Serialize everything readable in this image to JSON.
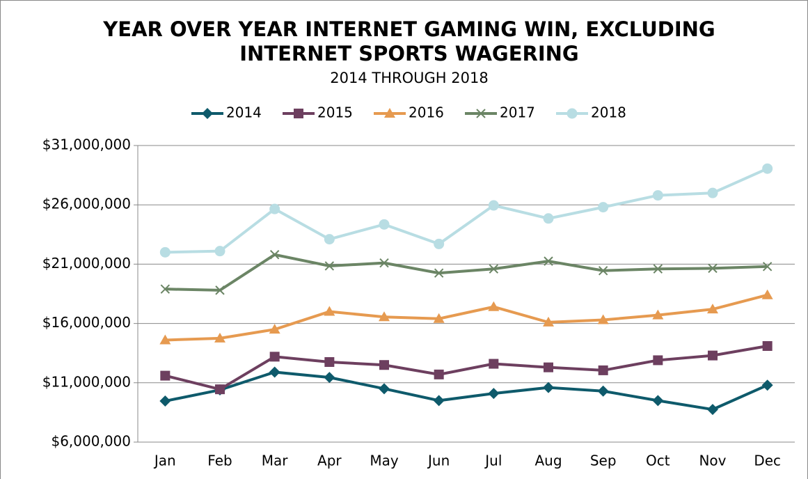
{
  "chart_data": {
    "type": "line",
    "title": [
      "YEAR OVER YEAR INTERNET GAMING WIN, EXCLUDING",
      "INTERNET SPORTS WAGERING"
    ],
    "subtitle": "2014 THROUGH 2018",
    "categories": [
      "Jan",
      "Feb",
      "Mar",
      "Apr",
      "May",
      "Jun",
      "Jul",
      "Aug",
      "Sep",
      "Oct",
      "Nov",
      "Dec"
    ],
    "series": [
      {
        "name": "2014",
        "color": "#0e5a6b",
        "marker": "diamond",
        "values": [
          9460000,
          10400000,
          11900000,
          11450000,
          10500000,
          9500000,
          10100000,
          10600000,
          10300000,
          9500000,
          8750000,
          10800000
        ]
      },
      {
        "name": "2015",
        "color": "#6d3f5f",
        "marker": "square",
        "values": [
          11600000,
          10450000,
          13200000,
          12750000,
          12500000,
          11700000,
          12600000,
          12300000,
          12050000,
          12900000,
          13300000,
          14100000
        ]
      },
      {
        "name": "2016",
        "color": "#e69a50",
        "marker": "triangle",
        "values": [
          14600000,
          14750000,
          15500000,
          17000000,
          16550000,
          16400000,
          17400000,
          16100000,
          16300000,
          16700000,
          17200000,
          18400000
        ]
      },
      {
        "name": "2017",
        "color": "#6b8565",
        "marker": "x",
        "values": [
          18900000,
          18800000,
          21800000,
          20850000,
          21100000,
          20250000,
          20600000,
          21250000,
          20450000,
          20600000,
          20650000,
          20800000
        ]
      },
      {
        "name": "2018",
        "color": "#b8dde3",
        "marker": "circle",
        "values": [
          22000000,
          22100000,
          25650000,
          23100000,
          24350000,
          22700000,
          25950000,
          24850000,
          25800000,
          26800000,
          27000000,
          29050000
        ]
      }
    ],
    "ylim": [
      6000000,
      31000000
    ],
    "yticks": [
      {
        "value": 6000000,
        "label": "$6,000,000"
      },
      {
        "value": 11000000,
        "label": "$11,000,000"
      },
      {
        "value": 16000000,
        "label": "$16,000,000"
      },
      {
        "value": 21000000,
        "label": "$21,000,000"
      },
      {
        "value": 26000000,
        "label": "$26,000,000"
      },
      {
        "value": 31000000,
        "label": "$31,000,000"
      }
    ],
    "grid": true,
    "legend": "top"
  }
}
